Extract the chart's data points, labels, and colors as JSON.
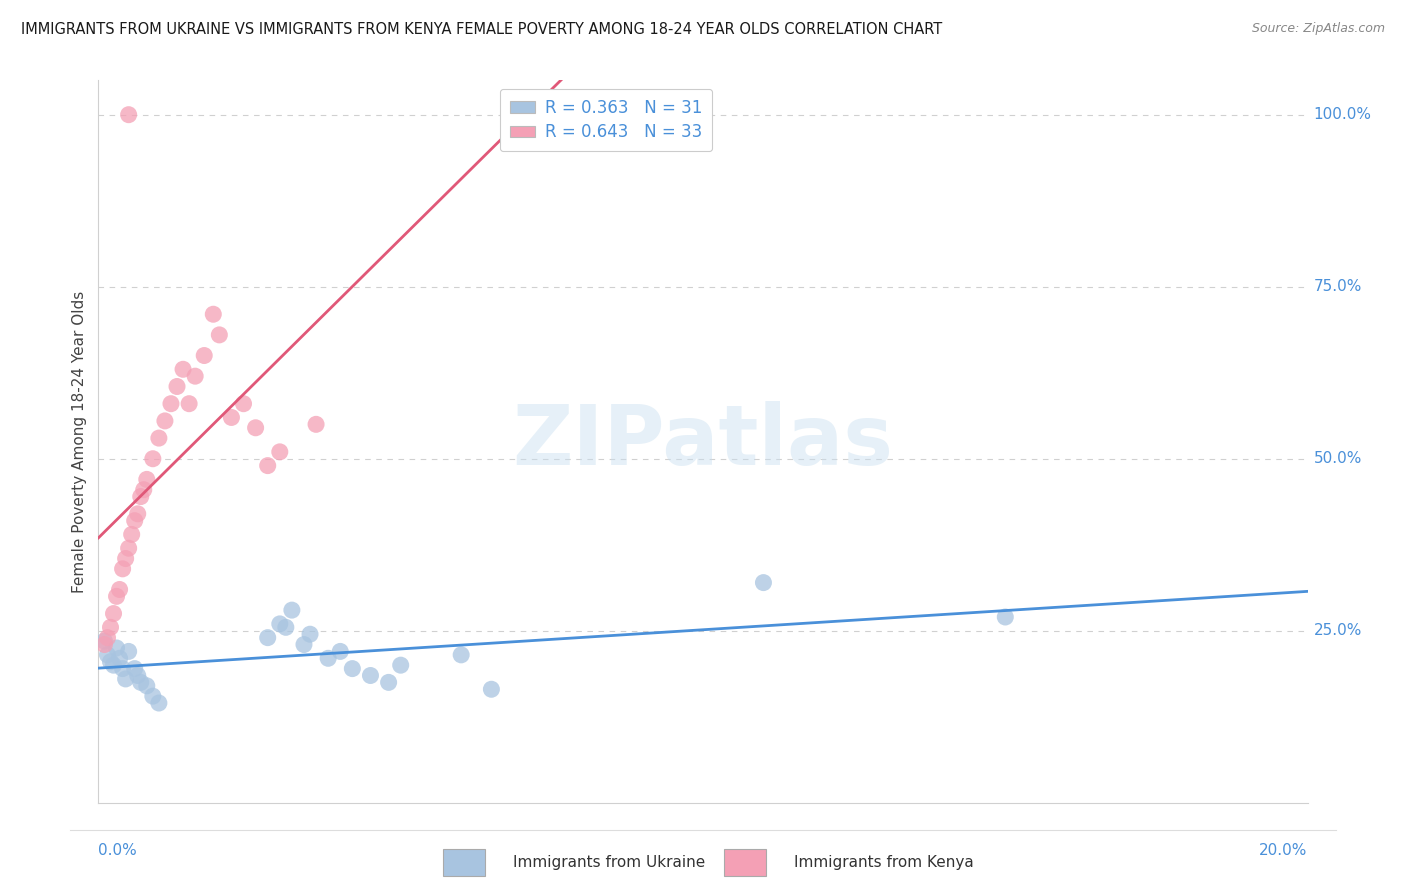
{
  "title": "IMMIGRANTS FROM UKRAINE VS IMMIGRANTS FROM KENYA FEMALE POVERTY AMONG 18-24 YEAR OLDS CORRELATION CHART",
  "source": "Source: ZipAtlas.com",
  "ylabel": "Female Poverty Among 18-24 Year Olds",
  "ukraine_R": "0.363",
  "ukraine_N": "31",
  "kenya_R": "0.643",
  "kenya_N": "33",
  "ukraine_color": "#a8c4e0",
  "kenya_color": "#f4a0b5",
  "ukraine_line_color": "#4a90d9",
  "kenya_line_color": "#e05878",
  "ukraine_scatter": [
    [
      0.001,
      0.235
    ],
    [
      0.0015,
      0.215
    ],
    [
      0.002,
      0.205
    ],
    [
      0.0025,
      0.2
    ],
    [
      0.003,
      0.225
    ],
    [
      0.0035,
      0.21
    ],
    [
      0.004,
      0.195
    ],
    [
      0.0045,
      0.18
    ],
    [
      0.005,
      0.22
    ],
    [
      0.006,
      0.195
    ],
    [
      0.0065,
      0.185
    ],
    [
      0.007,
      0.175
    ],
    [
      0.008,
      0.17
    ],
    [
      0.009,
      0.155
    ],
    [
      0.01,
      0.145
    ],
    [
      0.028,
      0.24
    ],
    [
      0.03,
      0.26
    ],
    [
      0.031,
      0.255
    ],
    [
      0.032,
      0.28
    ],
    [
      0.034,
      0.23
    ],
    [
      0.035,
      0.245
    ],
    [
      0.038,
      0.21
    ],
    [
      0.04,
      0.22
    ],
    [
      0.042,
      0.195
    ],
    [
      0.045,
      0.185
    ],
    [
      0.048,
      0.175
    ],
    [
      0.05,
      0.2
    ],
    [
      0.06,
      0.215
    ],
    [
      0.065,
      0.165
    ],
    [
      0.11,
      0.32
    ],
    [
      0.15,
      0.27
    ]
  ],
  "kenya_scatter": [
    [
      0.001,
      0.23
    ],
    [
      0.0015,
      0.24
    ],
    [
      0.002,
      0.255
    ],
    [
      0.0025,
      0.275
    ],
    [
      0.003,
      0.3
    ],
    [
      0.0035,
      0.31
    ],
    [
      0.004,
      0.34
    ],
    [
      0.0045,
      0.355
    ],
    [
      0.005,
      0.37
    ],
    [
      0.0055,
      0.39
    ],
    [
      0.006,
      0.41
    ],
    [
      0.0065,
      0.42
    ],
    [
      0.007,
      0.445
    ],
    [
      0.0075,
      0.455
    ],
    [
      0.008,
      0.47
    ],
    [
      0.009,
      0.5
    ],
    [
      0.01,
      0.53
    ],
    [
      0.011,
      0.555
    ],
    [
      0.012,
      0.58
    ],
    [
      0.013,
      0.605
    ],
    [
      0.014,
      0.63
    ],
    [
      0.015,
      0.58
    ],
    [
      0.016,
      0.62
    ],
    [
      0.0175,
      0.65
    ],
    [
      0.019,
      0.71
    ],
    [
      0.02,
      0.68
    ],
    [
      0.022,
      0.56
    ],
    [
      0.024,
      0.58
    ],
    [
      0.026,
      0.545
    ],
    [
      0.028,
      0.49
    ],
    [
      0.03,
      0.51
    ],
    [
      0.036,
      0.55
    ],
    [
      0.005,
      1.0
    ]
  ],
  "xlim": [
    0,
    0.2
  ],
  "ylim": [
    0,
    1.05
  ],
  "watermark": "ZIPatlas",
  "background_color": "#ffffff",
  "grid_color": "#d0d0d0"
}
